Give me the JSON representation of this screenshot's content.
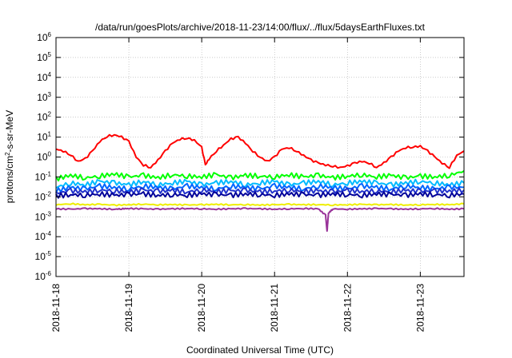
{
  "chart_data": {
    "type": "line",
    "title": "/data/run/goesPlots/archive/2018-11-23/14:00/flux/../flux/5daysEarthFluxes.txt",
    "xlabel": "Coordinated Universal Time (UTC)",
    "ylabel_main": "protons/cm",
    "ylabel_sup": "2",
    "ylabel_tail": "-s-sr-MeV",
    "yscale": "log",
    "ylim_exp": [
      -6,
      6
    ],
    "y_ticks": [
      {
        "base": "10",
        "exp": "6",
        "e": 6
      },
      {
        "base": "10",
        "exp": "5",
        "e": 5
      },
      {
        "base": "10",
        "exp": "4",
        "e": 4
      },
      {
        "base": "10",
        "exp": "3",
        "e": 3
      },
      {
        "base": "10",
        "exp": "2",
        "e": 2
      },
      {
        "base": "10",
        "exp": "1",
        "e": 1
      },
      {
        "base": "10",
        "exp": "0",
        "e": 0
      },
      {
        "base": "10",
        "exp": "-1",
        "e": -1
      },
      {
        "base": "10",
        "exp": "-2",
        "e": -2
      },
      {
        "base": "10",
        "exp": "-3",
        "e": -3
      },
      {
        "base": "10",
        "exp": "-4",
        "e": -4
      },
      {
        "base": "10",
        "exp": "-5",
        "e": -5
      },
      {
        "base": "10",
        "exp": "-6",
        "e": -6
      }
    ],
    "x_ticks": [
      "2018-11-18",
      "2018-11-19",
      "2018-11-20",
      "2018-11-21",
      "2018-11-22",
      "2018-11-23"
    ],
    "xlim_days": [
      0,
      5.6
    ],
    "grid": true,
    "series": [
      {
        "color": "#ff0000",
        "x": [
          0,
          0.1,
          0.2,
          0.3,
          0.4,
          0.5,
          0.6,
          0.7,
          0.8,
          0.9,
          1.0,
          1.1,
          1.2,
          1.3,
          1.4,
          1.5,
          1.6,
          1.7,
          1.8,
          1.9,
          2.0,
          2.05,
          2.1,
          2.2,
          2.3,
          2.4,
          2.5,
          2.6,
          2.7,
          2.8,
          2.9,
          3.0,
          3.1,
          3.2,
          3.3,
          3.4,
          3.5,
          3.6,
          3.7,
          3.8,
          3.9,
          4.0,
          4.1,
          4.2,
          4.3,
          4.4,
          4.5,
          4.6,
          4.7,
          4.8,
          4.9,
          5.0,
          5.1,
          5.2,
          5.3,
          5.4,
          5.5,
          5.6
        ],
        "y": [
          2.5,
          2.0,
          1.3,
          0.6,
          0.8,
          2.0,
          6.0,
          11.0,
          13.0,
          10.0,
          6.0,
          1.0,
          0.4,
          0.3,
          0.7,
          2.0,
          5.0,
          8.0,
          9.0,
          7.0,
          3.0,
          0.4,
          0.8,
          2.0,
          4.0,
          8.0,
          10.0,
          5.0,
          2.0,
          1.0,
          0.6,
          1.0,
          2.5,
          3.0,
          2.0,
          1.2,
          0.7,
          0.5,
          0.4,
          0.35,
          0.3,
          0.35,
          0.5,
          0.6,
          0.5,
          0.3,
          0.5,
          1.0,
          2.0,
          3.0,
          3.2,
          3.5,
          2.0,
          1.0,
          0.5,
          0.3,
          1.2,
          2.0
        ]
      },
      {
        "color": "#00ff00",
        "x": [
          0,
          0.2,
          0.4,
          0.6,
          0.8,
          1.0,
          1.2,
          1.4,
          1.6,
          1.8,
          2.0,
          2.2,
          2.4,
          2.6,
          2.8,
          3.0,
          3.2,
          3.4,
          3.6,
          3.8,
          4.0,
          4.2,
          4.4,
          4.6,
          4.8,
          5.0,
          5.2,
          5.4,
          5.6
        ],
        "y": [
          0.08,
          0.12,
          0.09,
          0.11,
          0.14,
          0.1,
          0.12,
          0.09,
          0.13,
          0.11,
          0.1,
          0.13,
          0.09,
          0.12,
          0.11,
          0.1,
          0.13,
          0.1,
          0.12,
          0.09,
          0.11,
          0.13,
          0.1,
          0.12,
          0.09,
          0.11,
          0.1,
          0.12,
          0.2
        ]
      },
      {
        "color": "#00bbff",
        "x": [
          0,
          0.2,
          0.4,
          0.6,
          0.8,
          1.0,
          1.2,
          1.4,
          1.6,
          1.8,
          2.0,
          2.2,
          2.4,
          2.6,
          2.8,
          3.0,
          3.2,
          3.4,
          3.6,
          3.8,
          4.0,
          4.2,
          4.4,
          4.6,
          4.8,
          5.0,
          5.2,
          5.4,
          5.6
        ],
        "y": [
          0.03,
          0.05,
          0.04,
          0.06,
          0.05,
          0.04,
          0.06,
          0.04,
          0.05,
          0.06,
          0.04,
          0.05,
          0.06,
          0.04,
          0.05,
          0.06,
          0.04,
          0.05,
          0.06,
          0.04,
          0.05,
          0.06,
          0.05,
          0.04,
          0.05,
          0.06,
          0.05,
          0.04,
          0.05
        ]
      },
      {
        "color": "#0066ff",
        "x": [
          0,
          0.2,
          0.4,
          0.6,
          0.8,
          1.0,
          1.2,
          1.4,
          1.6,
          1.8,
          2.0,
          2.2,
          2.4,
          2.6,
          2.8,
          3.0,
          3.2,
          3.4,
          3.6,
          3.8,
          4.0,
          4.2,
          4.4,
          4.6,
          4.8,
          5.0,
          5.2,
          5.4,
          5.6
        ],
        "y": [
          0.02,
          0.03,
          0.025,
          0.035,
          0.03,
          0.025,
          0.035,
          0.03,
          0.025,
          0.035,
          0.03,
          0.025,
          0.035,
          0.03,
          0.025,
          0.035,
          0.03,
          0.025,
          0.035,
          0.03,
          0.025,
          0.035,
          0.03,
          0.025,
          0.035,
          0.03,
          0.025,
          0.03,
          0.03
        ]
      },
      {
        "color": "#2233cc",
        "x": [
          0,
          0.2,
          0.4,
          0.6,
          0.8,
          1.0,
          1.2,
          1.4,
          1.6,
          1.8,
          2.0,
          2.2,
          2.4,
          2.6,
          2.8,
          3.0,
          3.2,
          3.4,
          3.6,
          3.8,
          4.0,
          4.2,
          4.4,
          4.6,
          4.8,
          5.0,
          5.2,
          5.4,
          5.6
        ],
        "y": [
          0.015,
          0.02,
          0.018,
          0.022,
          0.02,
          0.018,
          0.022,
          0.019,
          0.021,
          0.018,
          0.022,
          0.019,
          0.02,
          0.021,
          0.018,
          0.02,
          0.022,
          0.019,
          0.02,
          0.018,
          0.021,
          0.019,
          0.02,
          0.018,
          0.021,
          0.019,
          0.02,
          0.02,
          0.022
        ]
      },
      {
        "color": "#000099",
        "x": [
          0,
          0.2,
          0.4,
          0.6,
          0.8,
          1.0,
          1.2,
          1.4,
          1.6,
          1.8,
          2.0,
          2.2,
          2.4,
          2.6,
          2.8,
          3.0,
          3.2,
          3.4,
          3.6,
          3.8,
          4.0,
          4.2,
          4.4,
          4.6,
          4.8,
          5.0,
          5.2,
          5.4,
          5.6
        ],
        "y": [
          0.011,
          0.013,
          0.012,
          0.014,
          0.012,
          0.013,
          0.014,
          0.012,
          0.013,
          0.012,
          0.014,
          0.013,
          0.012,
          0.014,
          0.013,
          0.012,
          0.014,
          0.013,
          0.012,
          0.014,
          0.013,
          0.012,
          0.014,
          0.013,
          0.012,
          0.014,
          0.013,
          0.012,
          0.014
        ]
      },
      {
        "color": "#eeee00",
        "x": [
          0,
          0.2,
          0.4,
          0.6,
          0.8,
          1.0,
          1.2,
          1.4,
          1.6,
          1.8,
          2.0,
          2.2,
          2.4,
          2.6,
          2.8,
          3.0,
          3.2,
          3.4,
          3.6,
          3.8,
          4.0,
          4.2,
          4.4,
          4.6,
          4.8,
          5.0,
          5.2,
          5.4,
          5.6
        ],
        "y": [
          0.004,
          0.0045,
          0.004,
          0.0042,
          0.0038,
          0.004,
          0.0043,
          0.004,
          0.0041,
          0.0039,
          0.004,
          0.0042,
          0.004,
          0.0041,
          0.0039,
          0.004,
          0.0042,
          0.004,
          0.0041,
          0.0039,
          0.004,
          0.0042,
          0.004,
          0.0041,
          0.0039,
          0.004,
          0.0042,
          0.004,
          0.0045
        ]
      },
      {
        "color": "#993399",
        "x": [
          0,
          0.2,
          0.4,
          0.6,
          0.8,
          0.9,
          1.0,
          1.2,
          1.4,
          1.6,
          1.8,
          2.0,
          2.2,
          2.4,
          2.6,
          2.8,
          3.0,
          3.2,
          3.4,
          3.6,
          3.7,
          3.72,
          3.74,
          3.8,
          4.0,
          4.2,
          4.4,
          4.6,
          4.8,
          5.0,
          5.2,
          5.4,
          5.6
        ],
        "y": [
          0.0025,
          0.0024,
          0.0026,
          0.0025,
          0.0024,
          0.0025,
          0.0026,
          0.0025,
          0.0024,
          0.0025,
          0.0026,
          0.0025,
          0.0024,
          0.0025,
          0.0026,
          0.0025,
          0.0024,
          0.0025,
          0.0026,
          0.0025,
          0.0012,
          0.00018,
          0.0015,
          0.0025,
          0.0024,
          0.0025,
          0.0026,
          0.0025,
          0.0024,
          0.0025,
          0.0026,
          0.0024,
          0.0025
        ]
      }
    ]
  }
}
